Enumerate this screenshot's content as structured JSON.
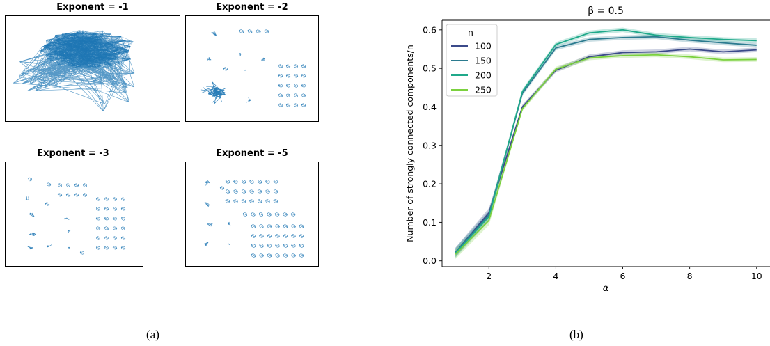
{
  "panel_a": {
    "caption": "(a)",
    "graphs": [
      {
        "title": "Exponent = -1"
      },
      {
        "title": "Exponent = -2"
      },
      {
        "title": "Exponent = -3"
      },
      {
        "title": "Exponent = -5"
      }
    ],
    "edge_color": "#1f77b4"
  },
  "panel_b": {
    "caption": "(b)"
  },
  "chart_data": [
    {
      "type": "network",
      "titles": [
        "Exponent = -1",
        "Exponent = -2",
        "Exponent = -3",
        "Exponent = -5"
      ]
    },
    {
      "type": "line",
      "title": "β = 0.5",
      "xlabel": "α",
      "ylabel": "Number of strongly connected components/n",
      "xlim": [
        0.6,
        10.4
      ],
      "ylim": [
        -0.015,
        0.625
      ],
      "xticks": [
        "2",
        "4",
        "6",
        "8",
        "10"
      ],
      "yticks": [
        "0.0",
        "0.1",
        "0.2",
        "0.3",
        "0.4",
        "0.5",
        "0.6"
      ],
      "legend_title": "n",
      "legend_position": "top-left",
      "grid": false,
      "x": [
        1,
        2,
        3,
        4,
        5,
        6,
        7,
        8,
        9,
        10
      ],
      "series": [
        {
          "name": "100",
          "color": "#3b4a8a",
          "values": [
            0.022,
            0.125,
            0.4,
            0.495,
            0.53,
            0.541,
            0.543,
            0.55,
            0.543,
            0.548
          ]
        },
        {
          "name": "150",
          "color": "#2b7b8f",
          "values": [
            0.022,
            0.12,
            0.435,
            0.553,
            0.575,
            0.58,
            0.582,
            0.573,
            0.566,
            0.56
          ]
        },
        {
          "name": "200",
          "color": "#1fa98a",
          "values": [
            0.02,
            0.115,
            0.44,
            0.562,
            0.592,
            0.6,
            0.586,
            0.58,
            0.575,
            0.572
          ]
        },
        {
          "name": "250",
          "color": "#7bd13e",
          "values": [
            0.017,
            0.105,
            0.395,
            0.498,
            0.527,
            0.533,
            0.535,
            0.53,
            0.522,
            0.523
          ]
        }
      ]
    }
  ]
}
